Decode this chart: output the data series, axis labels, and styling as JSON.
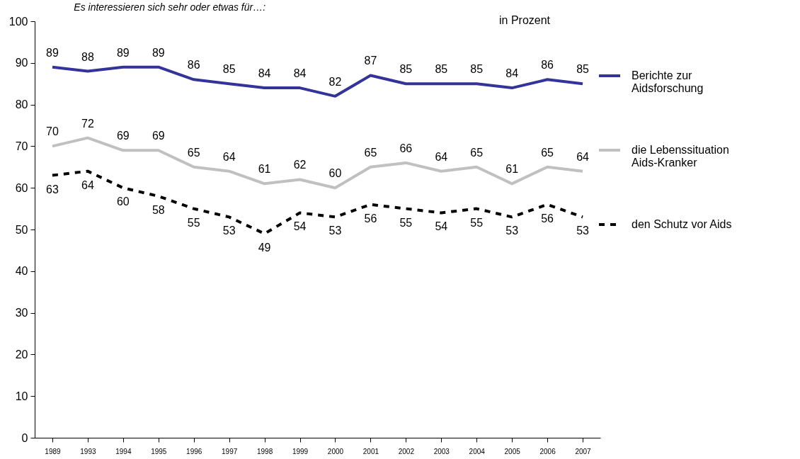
{
  "chart_data": {
    "type": "line",
    "title": "Es interessieren sich sehr oder etwas für…:",
    "annotations": [
      "in Prozent"
    ],
    "categories": [
      "1989",
      "1993",
      "1994",
      "1995",
      "1996",
      "1997",
      "1998",
      "1999",
      "2000",
      "2001",
      "2002",
      "2003",
      "2004",
      "2005",
      "2006",
      "2007"
    ],
    "series": [
      {
        "name": "Berichte zur Aidsforschung",
        "color": "#333399",
        "line_style": "solid",
        "values": [
          89,
          88,
          89,
          89,
          86,
          85,
          84,
          84,
          82,
          87,
          85,
          85,
          85,
          84,
          86,
          85
        ]
      },
      {
        "name": "die Lebenssituation Aids-Kranker",
        "color": "#c0c0c0",
        "line_style": "solid",
        "values": [
          70,
          72,
          69,
          69,
          65,
          64,
          61,
          62,
          60,
          65,
          66,
          64,
          65,
          61,
          65,
          64
        ]
      },
      {
        "name": "den Schutz vor Aids",
        "color": "#000000",
        "line_style": "dashed",
        "values": [
          63,
          64,
          60,
          58,
          55,
          53,
          49,
          54,
          53,
          56,
          55,
          54,
          55,
          53,
          56,
          53
        ]
      }
    ],
    "ylim": [
      0,
      100
    ],
    "yticks": [
      0,
      10,
      20,
      30,
      40,
      50,
      60,
      70,
      80,
      90,
      100
    ],
    "grid": false,
    "legend": "right",
    "data_labels": true,
    "marker": "none"
  }
}
